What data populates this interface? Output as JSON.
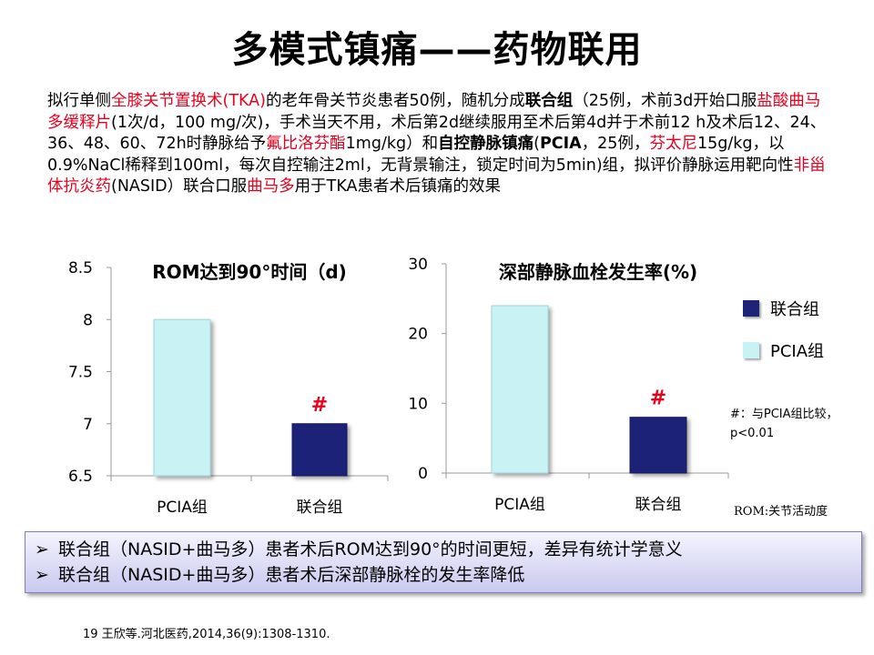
{
  "title": "多模式镇痛——药物联用",
  "paragraph": [
    {
      "t": "拟行单侧",
      "s": ""
    },
    {
      "t": "全膝关节置换术(TKA)",
      "s": "r"
    },
    {
      "t": "的老年骨关节炎患者50例，随机分成",
      "s": ""
    },
    {
      "t": "联合组",
      "s": "b"
    },
    {
      "t": "（25例，术前3d开始口服",
      "s": ""
    },
    {
      "t": "盐酸曲马多缓释片",
      "s": "r"
    },
    {
      "t": "(1次/d，100 mg/次)，手术当天不用，术后第2d继续服用至术后第4d并于术前12 h及术后12、24、36、48、60、72h时静脉给予",
      "s": ""
    },
    {
      "t": "氟比洛芬酯",
      "s": "r"
    },
    {
      "t": "1mg/kg）和",
      "s": ""
    },
    {
      "t": "自控静脉镇痛",
      "s": "b"
    },
    {
      "t": "(",
      "s": ""
    },
    {
      "t": "PCIA",
      "s": "b"
    },
    {
      "t": "，25例，",
      "s": ""
    },
    {
      "t": "芬太尼",
      "s": "r"
    },
    {
      "t": "15g/kg，以0.9%NaCl稀释到100ml，每次自控输注2ml，无背景输注，锁定时间为5min)组，拟评价静脉运用靶向性",
      "s": ""
    },
    {
      "t": "非甾体抗炎药",
      "s": "r"
    },
    {
      "t": "(NASID）联合口服",
      "s": ""
    },
    {
      "t": "曲马多",
      "s": "r"
    },
    {
      "t": "用于TKA患者术后镇痛的效果",
      "s": ""
    }
  ],
  "chart_data": [
    {
      "type": "bar",
      "title": "ROM达到90°时间（d)",
      "categories": [
        "PCIA组",
        "联合组"
      ],
      "series": [
        {
          "values": [
            8,
            7
          ]
        }
      ],
      "colors": [
        "#c9f2f4",
        "#1f2378"
      ],
      "ylim": [
        6.5,
        8.5
      ],
      "yticks": [
        "6.5",
        "7",
        "7.5",
        "8",
        "8.5"
      ],
      "annotations": [
        {
          "category": "联合组",
          "text": "#"
        }
      ],
      "grid": false
    },
    {
      "type": "bar",
      "title": "深部静脉血栓发生率(%)",
      "categories": [
        "PCIA组",
        "联合组"
      ],
      "series": [
        {
          "values": [
            24,
            8
          ]
        }
      ],
      "colors": [
        "#c9f2f4",
        "#1f2378"
      ],
      "ylim": [
        0,
        30
      ],
      "yticks": [
        "0",
        "10",
        "20",
        "30"
      ],
      "annotations": [
        {
          "category": "联合组",
          "text": "#"
        }
      ],
      "grid": false
    }
  ],
  "legend": [
    {
      "label": "联合组",
      "color": "#1f2378"
    },
    {
      "label": "PCIA组",
      "color": "#c9f2f4"
    }
  ],
  "note": "#：与PCIA组比较，p<0.01",
  "rom_note": "ROM:关节活动度",
  "summary": [
    "联合组（NASID+曲马多）患者术后ROM达到90°的时间更短，差异有统计学意义",
    "联合组（NASID+曲马多）患者术后深部静脉栓的发生率降低"
  ],
  "reference": "19 王欣等.河北医药,2014,36(9):1308-1310."
}
